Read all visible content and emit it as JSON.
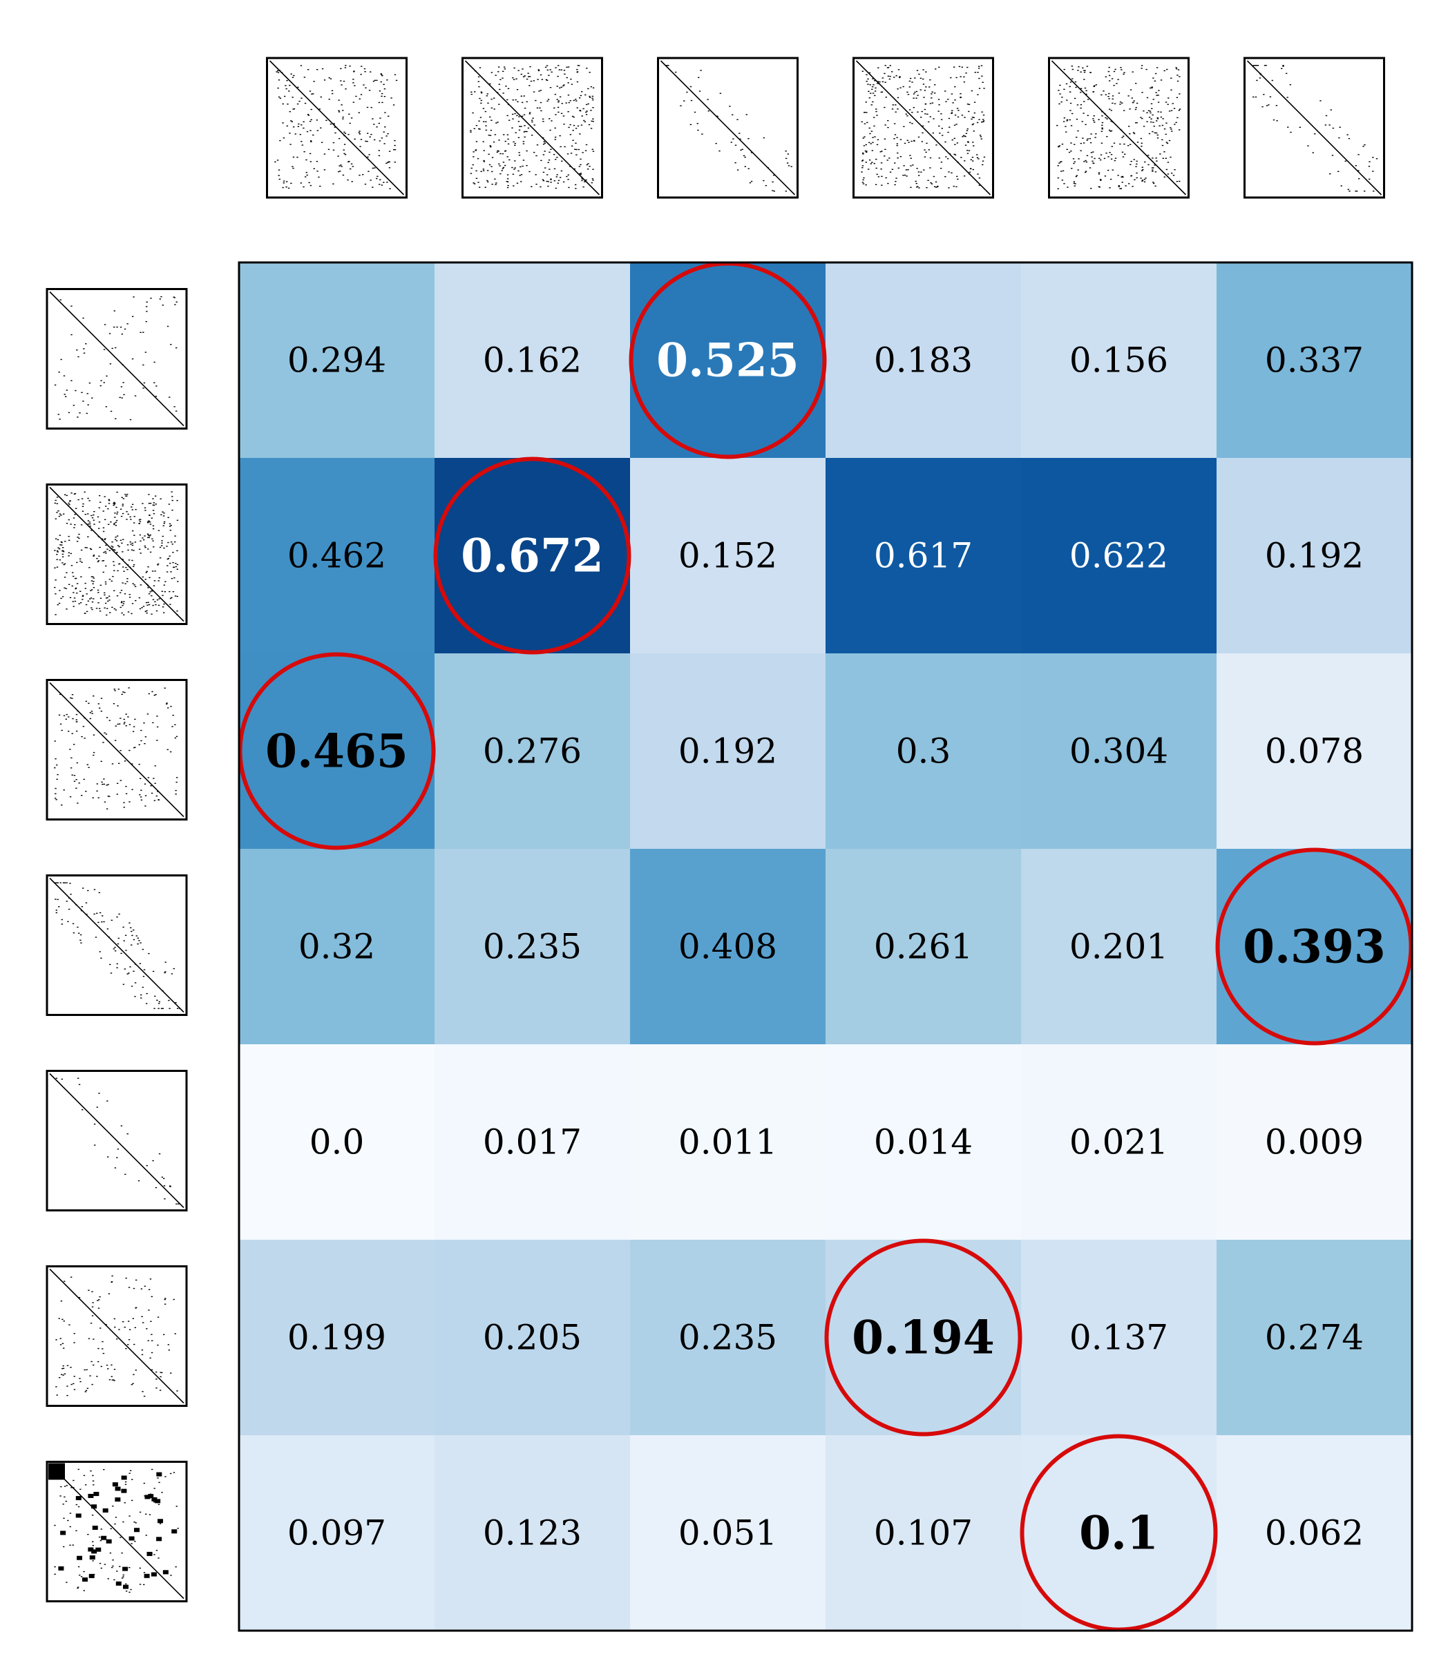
{
  "chart_data": {
    "type": "heatmap",
    "title": "",
    "xlabel": "",
    "ylabel": "",
    "rows": 7,
    "cols": 6,
    "colormap": "Blues",
    "value_range": [
      0,
      0.672
    ],
    "values": [
      [
        0.294,
        0.162,
        0.525,
        0.183,
        0.156,
        0.337
      ],
      [
        0.462,
        0.672,
        0.152,
        0.617,
        0.622,
        0.192
      ],
      [
        0.465,
        0.276,
        0.192,
        0.3,
        0.304,
        0.078
      ],
      [
        0.32,
        0.235,
        0.408,
        0.261,
        0.201,
        0.393
      ],
      [
        0.0,
        0.017,
        0.011,
        0.014,
        0.021,
        0.009
      ],
      [
        0.199,
        0.205,
        0.235,
        0.194,
        0.137,
        0.274
      ],
      [
        0.097,
        0.123,
        0.051,
        0.107,
        0.1,
        0.062
      ]
    ],
    "labels": [
      [
        "0.294",
        "0.162",
        "0.525",
        "0.183",
        "0.156",
        "0.337"
      ],
      [
        "0.462",
        "0.672",
        "0.152",
        "0.617",
        "0.622",
        "0.192"
      ],
      [
        "0.465",
        "0.276",
        "0.192",
        "0.3",
        "0.304",
        "0.078"
      ],
      [
        "0.32",
        "0.235",
        "0.408",
        "0.261",
        "0.201",
        "0.393"
      ],
      [
        "0.0",
        "0.017",
        "0.011",
        "0.014",
        "0.021",
        "0.009"
      ],
      [
        "0.199",
        "0.205",
        "0.235",
        "0.194",
        "0.137",
        "0.274"
      ],
      [
        "0.097",
        "0.123",
        "0.051",
        "0.107",
        "0.1",
        "0.062"
      ]
    ],
    "highlighted": [
      {
        "row": 0,
        "col": 2
      },
      {
        "row": 1,
        "col": 1
      },
      {
        "row": 2,
        "col": 0
      },
      {
        "row": 3,
        "col": 5
      },
      {
        "row": 5,
        "col": 3
      },
      {
        "row": 6,
        "col": 4
      }
    ],
    "highlight_color": "#d60a0a",
    "column_thumbnails": [
      "sparse-matrix-pattern",
      "sparse-matrix-pattern",
      "sparse-matrix-pattern",
      "sparse-matrix-pattern",
      "sparse-matrix-pattern",
      "sparse-matrix-pattern"
    ],
    "row_thumbnails": [
      "sparse-matrix-pattern",
      "sparse-matrix-pattern",
      "sparse-matrix-pattern",
      "sparse-matrix-pattern",
      "sparse-matrix-pattern",
      "sparse-matrix-pattern",
      "sparse-matrix-pattern"
    ],
    "grid": false
  }
}
